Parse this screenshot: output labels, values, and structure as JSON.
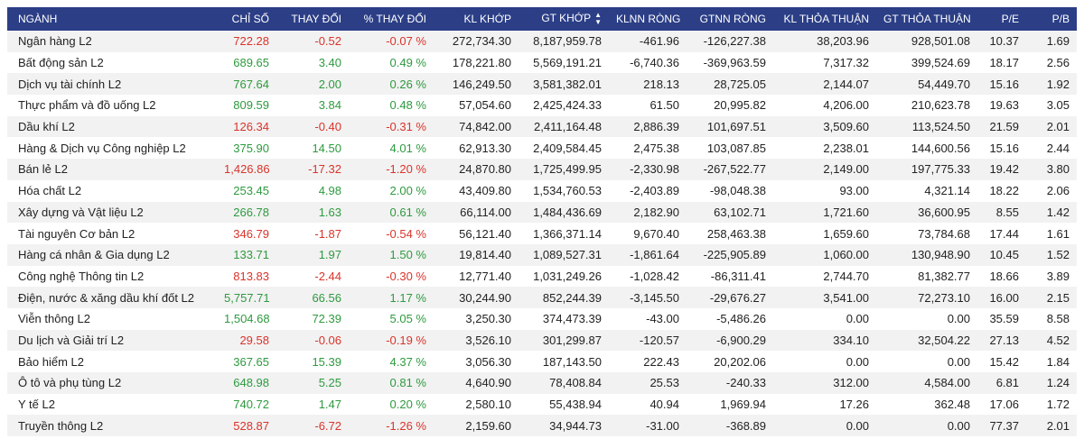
{
  "colors": {
    "header_bg": "#2b3e86",
    "up": "#2e9a3f",
    "down": "#d9342b",
    "row_alt": "#f2f2f2"
  },
  "columns": [
    "NGÀNH",
    "CHỈ SỐ",
    "THAY ĐỔI",
    "% THAY ĐỔI",
    "KL KHỚP",
    "GT KHỚP",
    "KLNN RÒNG",
    "GTNN RÒNG",
    "KL THỎA THUẬN",
    "GT THỎA THUẬN",
    "P/E",
    "P/B"
  ],
  "sort_icon": "sort-up-down-icon",
  "rows": [
    {
      "name": "Ngân hàng L2",
      "index": "722.28",
      "change": "-0.52",
      "pct": "-0.07 %",
      "dir": "down",
      "kl_khop": "272,734.30",
      "gt_khop": "8,187,959.78",
      "klnn": "-461.96",
      "gtnn": "-126,227.38",
      "kl_tt": "38,203.96",
      "gt_tt": "928,501.08",
      "pe": "10.37",
      "pb": "1.69"
    },
    {
      "name": "Bất động sản L2",
      "index": "689.65",
      "change": "3.40",
      "pct": "0.49 %",
      "dir": "up",
      "kl_khop": "178,221.80",
      "gt_khop": "5,569,191.21",
      "klnn": "-6,740.36",
      "gtnn": "-369,963.59",
      "kl_tt": "7,317.32",
      "gt_tt": "399,524.69",
      "pe": "18.17",
      "pb": "2.56"
    },
    {
      "name": "Dịch vụ tài chính L2",
      "index": "767.64",
      "change": "2.00",
      "pct": "0.26 %",
      "dir": "up",
      "kl_khop": "146,249.50",
      "gt_khop": "3,581,382.01",
      "klnn": "218.13",
      "gtnn": "28,725.05",
      "kl_tt": "2,144.07",
      "gt_tt": "54,449.70",
      "pe": "15.16",
      "pb": "1.92"
    },
    {
      "name": "Thực phẩm và đồ uống L2",
      "index": "809.59",
      "change": "3.84",
      "pct": "0.48 %",
      "dir": "up",
      "kl_khop": "57,054.60",
      "gt_khop": "2,425,424.33",
      "klnn": "61.50",
      "gtnn": "20,995.82",
      "kl_tt": "4,206.00",
      "gt_tt": "210,623.78",
      "pe": "19.63",
      "pb": "3.05"
    },
    {
      "name": "Dầu khí L2",
      "index": "126.34",
      "change": "-0.40",
      "pct": "-0.31 %",
      "dir": "down",
      "kl_khop": "74,842.00",
      "gt_khop": "2,411,164.48",
      "klnn": "2,886.39",
      "gtnn": "101,697.51",
      "kl_tt": "3,509.60",
      "gt_tt": "113,524.50",
      "pe": "21.59",
      "pb": "2.01"
    },
    {
      "name": "Hàng & Dịch vụ Công nghiệp L2",
      "index": "375.90",
      "change": "14.50",
      "pct": "4.01 %",
      "dir": "up",
      "kl_khop": "62,913.30",
      "gt_khop": "2,409,584.45",
      "klnn": "2,475.38",
      "gtnn": "103,087.85",
      "kl_tt": "2,238.01",
      "gt_tt": "144,600.56",
      "pe": "15.16",
      "pb": "2.44"
    },
    {
      "name": "Bán lẻ L2",
      "index": "1,426.86",
      "change": "-17.32",
      "pct": "-1.20 %",
      "dir": "down",
      "kl_khop": "24,870.80",
      "gt_khop": "1,725,499.95",
      "klnn": "-2,330.98",
      "gtnn": "-267,522.77",
      "kl_tt": "2,149.00",
      "gt_tt": "197,775.33",
      "pe": "19.42",
      "pb": "3.80"
    },
    {
      "name": "Hóa chất L2",
      "index": "253.45",
      "change": "4.98",
      "pct": "2.00 %",
      "dir": "up",
      "kl_khop": "43,409.80",
      "gt_khop": "1,534,760.53",
      "klnn": "-2,403.89",
      "gtnn": "-98,048.38",
      "kl_tt": "93.00",
      "gt_tt": "4,321.14",
      "pe": "18.22",
      "pb": "2.06"
    },
    {
      "name": "Xây dựng và Vật liệu L2",
      "index": "266.78",
      "change": "1.63",
      "pct": "0.61 %",
      "dir": "up",
      "kl_khop": "66,114.00",
      "gt_khop": "1,484,436.69",
      "klnn": "2,182.90",
      "gtnn": "63,102.71",
      "kl_tt": "1,721.60",
      "gt_tt": "36,600.95",
      "pe": "8.55",
      "pb": "1.42"
    },
    {
      "name": "Tài nguyên Cơ bản L2",
      "index": "346.79",
      "change": "-1.87",
      "pct": "-0.54 %",
      "dir": "down",
      "kl_khop": "56,121.40",
      "gt_khop": "1,366,371.14",
      "klnn": "9,670.40",
      "gtnn": "258,463.38",
      "kl_tt": "1,659.60",
      "gt_tt": "73,784.68",
      "pe": "17.44",
      "pb": "1.61"
    },
    {
      "name": "Hàng cá nhân & Gia dụng L2",
      "index": "133.71",
      "change": "1.97",
      "pct": "1.50 %",
      "dir": "up",
      "kl_khop": "19,814.40",
      "gt_khop": "1,089,527.31",
      "klnn": "-1,861.64",
      "gtnn": "-225,905.89",
      "kl_tt": "1,060.00",
      "gt_tt": "130,948.90",
      "pe": "10.45",
      "pb": "1.52"
    },
    {
      "name": "Công nghệ Thông tin L2",
      "index": "813.83",
      "change": "-2.44",
      "pct": "-0.30 %",
      "dir": "down",
      "kl_khop": "12,771.40",
      "gt_khop": "1,031,249.26",
      "klnn": "-1,028.42",
      "gtnn": "-86,311.41",
      "kl_tt": "2,744.70",
      "gt_tt": "81,382.77",
      "pe": "18.66",
      "pb": "3.89"
    },
    {
      "name": "Điện, nước & xăng dầu khí đốt L2",
      "index": "5,757.71",
      "change": "66.56",
      "pct": "1.17 %",
      "dir": "up",
      "kl_khop": "30,244.90",
      "gt_khop": "852,244.39",
      "klnn": "-3,145.50",
      "gtnn": "-29,676.27",
      "kl_tt": "3,541.00",
      "gt_tt": "72,273.10",
      "pe": "16.00",
      "pb": "2.15"
    },
    {
      "name": "Viễn thông L2",
      "index": "1,504.68",
      "change": "72.39",
      "pct": "5.05 %",
      "dir": "up",
      "kl_khop": "3,250.30",
      "gt_khop": "374,473.39",
      "klnn": "-43.00",
      "gtnn": "-5,486.26",
      "kl_tt": "0.00",
      "gt_tt": "0.00",
      "pe": "35.59",
      "pb": "8.58"
    },
    {
      "name": "Du lịch và Giải trí L2",
      "index": "29.58",
      "change": "-0.06",
      "pct": "-0.19 %",
      "dir": "down",
      "kl_khop": "3,526.10",
      "gt_khop": "301,299.87",
      "klnn": "-120.57",
      "gtnn": "-6,900.29",
      "kl_tt": "334.10",
      "gt_tt": "32,504.22",
      "pe": "27.13",
      "pb": "4.52"
    },
    {
      "name": "Bảo hiểm L2",
      "index": "367.65",
      "change": "15.39",
      "pct": "4.37 %",
      "dir": "up",
      "kl_khop": "3,056.30",
      "gt_khop": "187,143.50",
      "klnn": "222.43",
      "gtnn": "20,202.06",
      "kl_tt": "0.00",
      "gt_tt": "0.00",
      "pe": "15.42",
      "pb": "1.84"
    },
    {
      "name": "Ô tô và phụ tùng L2",
      "index": "648.98",
      "change": "5.25",
      "pct": "0.81 %",
      "dir": "up",
      "kl_khop": "4,640.90",
      "gt_khop": "78,408.84",
      "klnn": "25.53",
      "gtnn": "-240.33",
      "kl_tt": "312.00",
      "gt_tt": "4,584.00",
      "pe": "6.81",
      "pb": "1.24"
    },
    {
      "name": "Y tế L2",
      "index": "740.72",
      "change": "1.47",
      "pct": "0.20 %",
      "dir": "up",
      "kl_khop": "2,580.10",
      "gt_khop": "55,438.94",
      "klnn": "40.94",
      "gtnn": "1,969.94",
      "kl_tt": "17.26",
      "gt_tt": "362.48",
      "pe": "17.06",
      "pb": "1.72"
    },
    {
      "name": "Truyền thông L2",
      "index": "528.87",
      "change": "-6.72",
      "pct": "-1.26 %",
      "dir": "down",
      "kl_khop": "2,159.60",
      "gt_khop": "34,944.73",
      "klnn": "-31.00",
      "gtnn": "-368.89",
      "kl_tt": "0.00",
      "gt_tt": "0.00",
      "pe": "77.37",
      "pb": "2.01"
    }
  ]
}
